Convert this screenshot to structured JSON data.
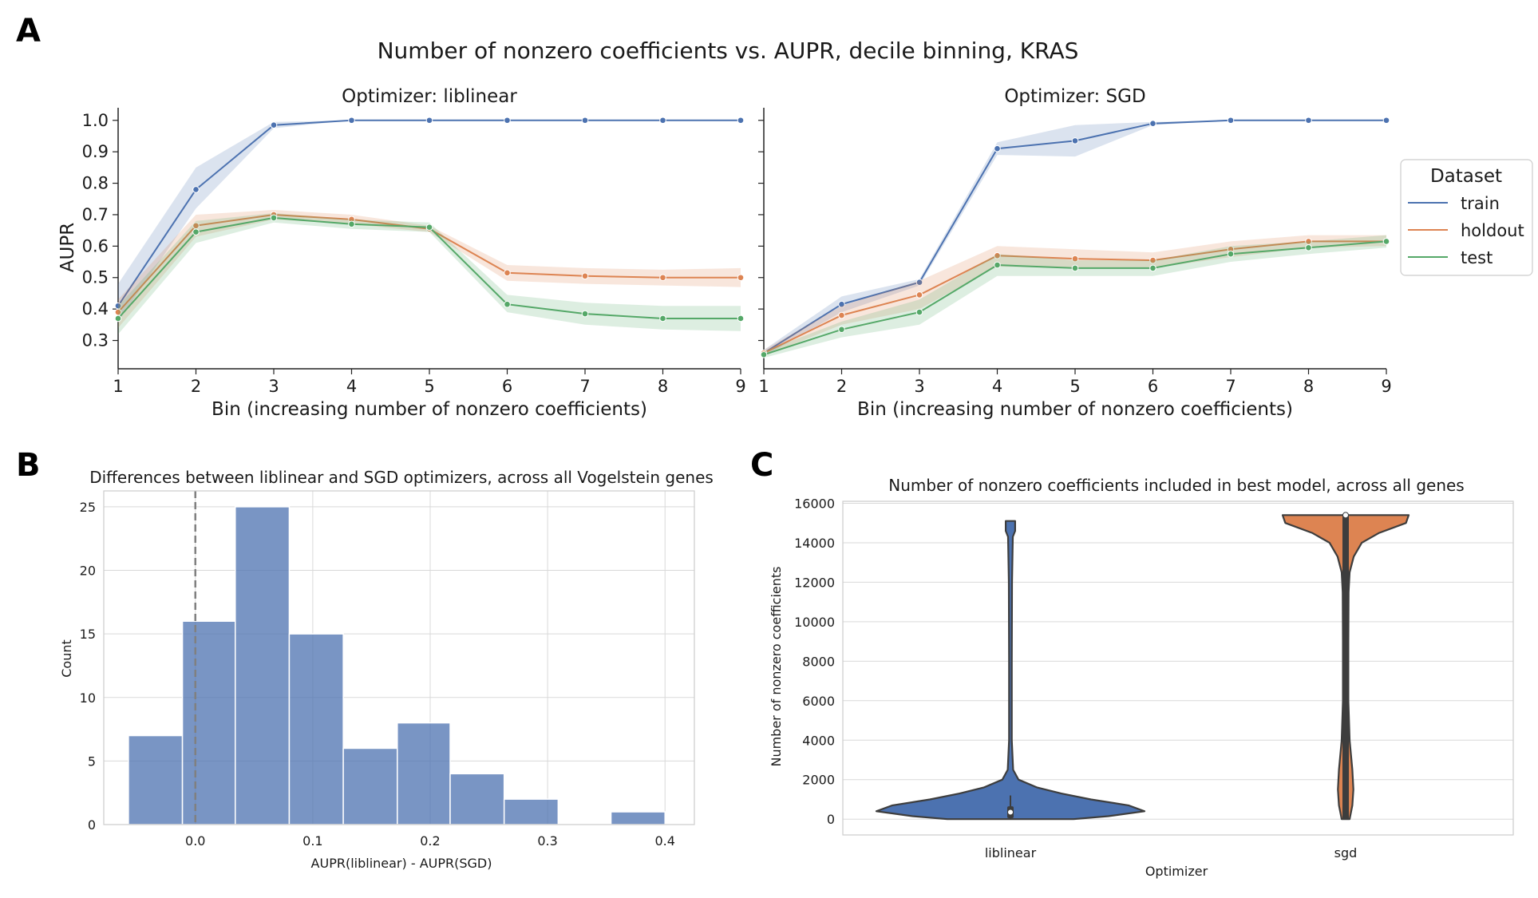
{
  "panel_letters": {
    "a": "A",
    "b": "B",
    "c": "C"
  },
  "chart_data": [
    {
      "panel": "A",
      "type": "line",
      "suptitle": "Number of nonzero coefficients vs. AUPR, decile binning, KRAS",
      "subplots": [
        {
          "title": "Optimizer: liblinear",
          "xlabel": "Bin (increasing number of nonzero coefficients)",
          "ylabel": "AUPR",
          "x": [
            1,
            2,
            3,
            4,
            5,
            6,
            7,
            8,
            9
          ],
          "xlim": [
            1,
            9
          ],
          "ylim": [
            0.21,
            1.04
          ],
          "yticks": [
            0.3,
            0.4,
            0.5,
            0.6,
            0.7,
            0.8,
            0.9,
            1.0
          ],
          "ytick_labels": [
            "0.3",
            "0.4",
            "0.5",
            "0.6",
            "0.7",
            "0.8",
            "0.9",
            "1.0"
          ],
          "series": [
            {
              "name": "train",
              "color": "#4c72b0",
              "values": [
                0.41,
                0.78,
                0.985,
                1.0,
                1.0,
                1.0,
                1.0,
                1.0,
                1.0
              ],
              "lower": [
                0.36,
                0.72,
                0.975,
                1.0,
                1.0,
                1.0,
                1.0,
                1.0,
                1.0
              ],
              "upper": [
                0.48,
                0.85,
                0.995,
                1.0,
                1.0,
                1.0,
                1.0,
                1.0,
                1.0
              ]
            },
            {
              "name": "holdout",
              "color": "#dd8452",
              "values": [
                0.39,
                0.665,
                0.7,
                0.685,
                0.655,
                0.515,
                0.505,
                0.5,
                0.5
              ],
              "lower": [
                0.34,
                0.63,
                0.685,
                0.67,
                0.645,
                0.49,
                0.48,
                0.475,
                0.47
              ],
              "upper": [
                0.43,
                0.7,
                0.715,
                0.7,
                0.665,
                0.54,
                0.53,
                0.525,
                0.53
              ]
            },
            {
              "name": "test",
              "color": "#55a868",
              "values": [
                0.37,
                0.645,
                0.69,
                0.67,
                0.66,
                0.415,
                0.385,
                0.37,
                0.37
              ],
              "lower": [
                0.32,
                0.61,
                0.675,
                0.655,
                0.645,
                0.39,
                0.35,
                0.335,
                0.33
              ],
              "upper": [
                0.41,
                0.68,
                0.705,
                0.685,
                0.675,
                0.445,
                0.42,
                0.41,
                0.41
              ]
            }
          ]
        },
        {
          "title": "Optimizer: SGD",
          "xlabel": "Bin (increasing number of nonzero coefficients)",
          "ylabel": "",
          "x": [
            1,
            2,
            3,
            4,
            5,
            6,
            7,
            8,
            9
          ],
          "xlim": [
            1,
            9
          ],
          "ylim": [
            0.21,
            1.04
          ],
          "yticks": [
            0.3,
            0.4,
            0.5,
            0.6,
            0.7,
            0.8,
            0.9,
            1.0
          ],
          "ytick_labels": [],
          "series": [
            {
              "name": "train",
              "color": "#4c72b0",
              "values": [
                0.26,
                0.415,
                0.485,
                0.91,
                0.935,
                0.99,
                1.0,
                1.0,
                1.0
              ],
              "lower": [
                0.25,
                0.39,
                0.475,
                0.89,
                0.885,
                0.985,
                1.0,
                1.0,
                1.0
              ],
              "upper": [
                0.27,
                0.44,
                0.495,
                0.93,
                0.985,
                0.995,
                1.0,
                1.0,
                1.0
              ]
            },
            {
              "name": "holdout",
              "color": "#dd8452",
              "values": [
                0.26,
                0.38,
                0.445,
                0.57,
                0.56,
                0.555,
                0.59,
                0.615,
                0.615
              ],
              "lower": [
                0.25,
                0.35,
                0.4,
                0.535,
                0.53,
                0.53,
                0.565,
                0.595,
                0.6
              ],
              "upper": [
                0.27,
                0.41,
                0.49,
                0.6,
                0.59,
                0.58,
                0.615,
                0.635,
                0.635
              ]
            },
            {
              "name": "test",
              "color": "#55a868",
              "values": [
                0.255,
                0.335,
                0.39,
                0.54,
                0.53,
                0.53,
                0.575,
                0.595,
                0.615
              ],
              "lower": [
                0.245,
                0.31,
                0.35,
                0.505,
                0.505,
                0.505,
                0.55,
                0.575,
                0.595
              ],
              "upper": [
                0.265,
                0.36,
                0.43,
                0.575,
                0.555,
                0.555,
                0.6,
                0.615,
                0.635
              ]
            }
          ]
        }
      ],
      "legend": {
        "title": "Dataset",
        "entries": [
          "train",
          "holdout",
          "test"
        ],
        "placement": "right"
      }
    },
    {
      "panel": "B",
      "type": "histogram",
      "title": "Differences between liblinear and SGD optimizers, across all Vogelstein genes",
      "xlabel": "AUPR(liblinear) - AUPR(SGD)",
      "ylabel": "Count",
      "color": "#4c72b0",
      "bin_edges": [
        -0.057,
        -0.011,
        0.034,
        0.08,
        0.126,
        0.172,
        0.217,
        0.263,
        0.309,
        0.354,
        0.4
      ],
      "counts": [
        7,
        16,
        25,
        15,
        6,
        8,
        4,
        2,
        0,
        1
      ],
      "xlim": [
        -0.078,
        0.425
      ],
      "ylim": [
        0,
        26.25
      ],
      "xticks": [
        0.0,
        0.1,
        0.2,
        0.3,
        0.4
      ],
      "xtick_labels": [
        "0.0",
        "0.1",
        "0.2",
        "0.3",
        "0.4"
      ],
      "yticks": [
        0,
        5,
        10,
        15,
        20,
        25
      ],
      "ytick_labels": [
        "0",
        "5",
        "10",
        "15",
        "20",
        "25"
      ],
      "vline": {
        "x": 0.0,
        "style": "dashed",
        "color": "#808080"
      },
      "grid": true
    },
    {
      "panel": "C",
      "type": "violin",
      "title": "Number of nonzero coefficients included in best model, across all genes",
      "xlabel": "Optimizer",
      "ylabel": "Number of nonzero coefficients",
      "categories": [
        "liblinear",
        "sgd"
      ],
      "ylim": [
        -800,
        16100
      ],
      "yticks": [
        0,
        2000,
        4000,
        6000,
        8000,
        10000,
        12000,
        14000,
        16000
      ],
      "ytick_labels": [
        "0",
        "2000",
        "4000",
        "6000",
        "8000",
        "10000",
        "12000",
        "14000",
        "16000"
      ],
      "grid": true,
      "violins": [
        {
          "name": "liblinear",
          "color": "#4c72b0",
          "q1": 50,
          "median": 350,
          "q3": 650,
          "whisker_low": 0,
          "whisker_high": 1200,
          "profile": [
            [
              0,
              0.47
            ],
            [
              150,
              0.73
            ],
            [
              400,
              1.0
            ],
            [
              700,
              0.88
            ],
            [
              1000,
              0.6
            ],
            [
              1300,
              0.38
            ],
            [
              1600,
              0.2
            ],
            [
              2000,
              0.06
            ],
            [
              2500,
              0.02
            ],
            [
              4000,
              0.01
            ],
            [
              8000,
              0.01
            ],
            [
              12000,
              0.012
            ],
            [
              14300,
              0.018
            ],
            [
              14600,
              0.035
            ],
            [
              15100,
              0.035
            ]
          ]
        },
        {
          "name": "sgd",
          "color": "#dd8452",
          "q1": 0,
          "median": 15400,
          "q3": 15400,
          "whisker_low": 0,
          "whisker_high": 15400,
          "profile": [
            [
              0,
              0.03
            ],
            [
              700,
              0.05
            ],
            [
              1500,
              0.058
            ],
            [
              2500,
              0.05
            ],
            [
              4000,
              0.03
            ],
            [
              6000,
              0.02
            ],
            [
              9000,
              0.02
            ],
            [
              11500,
              0.022
            ],
            [
              12500,
              0.03
            ],
            [
              13300,
              0.06
            ],
            [
              14000,
              0.12
            ],
            [
              14500,
              0.25
            ],
            [
              15000,
              0.45
            ],
            [
              15400,
              0.47
            ]
          ]
        }
      ]
    }
  ]
}
